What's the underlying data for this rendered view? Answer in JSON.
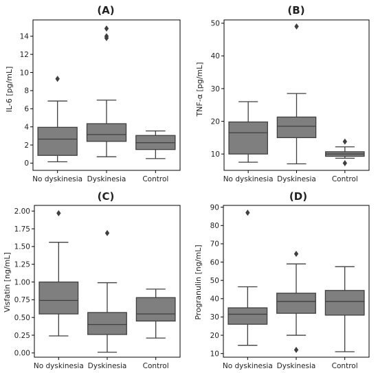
{
  "chart_data": [
    {
      "type": "box",
      "title": "(A)",
      "ylabel": "IL-6 [pg/mL]",
      "categories": [
        "No dyskinesia",
        "Dyskinesia",
        "Control"
      ],
      "ylim": [
        -0.8,
        15.8
      ],
      "yticks": [
        0,
        2,
        4,
        6,
        8,
        10,
        12,
        14
      ],
      "ytick_labels": [
        "0",
        "2",
        "4",
        "6",
        "8",
        "10",
        "12",
        "14"
      ],
      "boxes": [
        {
          "whislo": 0.15,
          "q1": 0.85,
          "med": 2.65,
          "q3": 3.95,
          "whishi": 6.85,
          "fliers": [
            9.3
          ]
        },
        {
          "whislo": 0.7,
          "q1": 2.4,
          "med": 3.15,
          "q3": 4.35,
          "whishi": 6.95,
          "fliers": [
            13.8,
            14.0,
            14.85
          ]
        },
        {
          "whislo": 0.5,
          "q1": 1.5,
          "med": 2.25,
          "q3": 3.05,
          "whishi": 3.55,
          "fliers": []
        }
      ]
    },
    {
      "type": "box",
      "title": "(B)",
      "ylabel": "TNF-α [pg/mL]",
      "categories": [
        "No dyskinesia",
        "Dyskinesia",
        "Control"
      ],
      "ylim": [
        5,
        51
      ],
      "yticks": [
        10,
        20,
        30,
        40,
        50
      ],
      "ytick_labels": [
        "10",
        "20",
        "30",
        "40",
        "50"
      ],
      "boxes": [
        {
          "whislo": 7.5,
          "q1": 10.0,
          "med": 16.5,
          "q3": 19.8,
          "whishi": 26.0,
          "fliers": []
        },
        {
          "whislo": 7.0,
          "q1": 15.0,
          "med": 18.5,
          "q3": 21.3,
          "whishi": 28.5,
          "fliers": [
            49.0
          ]
        },
        {
          "whislo": 8.7,
          "q1": 9.3,
          "med": 10.0,
          "q3": 10.7,
          "whishi": 12.2,
          "fliers": [
            7.2,
            13.8
          ]
        }
      ]
    },
    {
      "type": "box",
      "title": "(C)",
      "ylabel": "Visfatin [ng/mL]",
      "categories": [
        "No dyskinesia",
        "Dyskinesia",
        "Control"
      ],
      "ylim": [
        -0.06,
        2.08
      ],
      "yticks": [
        0,
        0.25,
        0.5,
        0.75,
        1.0,
        1.25,
        1.5,
        1.75,
        2.0
      ],
      "ytick_labels": [
        "0.00",
        "0.25",
        "0.50",
        "0.75",
        "1.00",
        "1.25",
        "1.50",
        "1.75",
        "2.00"
      ],
      "boxes": [
        {
          "whislo": 0.24,
          "q1": 0.55,
          "med": 0.74,
          "q3": 1.0,
          "whishi": 1.56,
          "fliers": [
            1.97
          ]
        },
        {
          "whislo": 0.01,
          "q1": 0.26,
          "med": 0.4,
          "q3": 0.57,
          "whishi": 0.99,
          "fliers": [
            1.69
          ]
        },
        {
          "whislo": 0.21,
          "q1": 0.45,
          "med": 0.55,
          "q3": 0.78,
          "whishi": 0.9,
          "fliers": []
        }
      ]
    },
    {
      "type": "box",
      "title": "(D)",
      "ylabel": "Progranulin [ng/mL]",
      "categories": [
        "No dyskinesia",
        "Dyskinesia",
        "Control"
      ],
      "ylim": [
        8,
        91
      ],
      "yticks": [
        10,
        20,
        30,
        40,
        50,
        60,
        70,
        80,
        90
      ],
      "ytick_labels": [
        "10",
        "20",
        "30",
        "40",
        "50",
        "60",
        "70",
        "80",
        "90"
      ],
      "boxes": [
        {
          "whislo": 14.5,
          "q1": 26.0,
          "med": 31.5,
          "q3": 35.0,
          "whishi": 46.5,
          "fliers": [
            87.0
          ]
        },
        {
          "whislo": 20.0,
          "q1": 32.0,
          "med": 38.5,
          "q3": 43.0,
          "whishi": 59.0,
          "fliers": [
            12.0,
            64.5
          ]
        },
        {
          "whislo": 11.0,
          "q1": 31.0,
          "med": 38.5,
          "q3": 44.5,
          "whishi": 57.5,
          "fliers": []
        }
      ]
    }
  ],
  "colors": {
    "box_fill": "#7f7f7f",
    "line": "#3f3f3f",
    "axis": "#000000"
  }
}
